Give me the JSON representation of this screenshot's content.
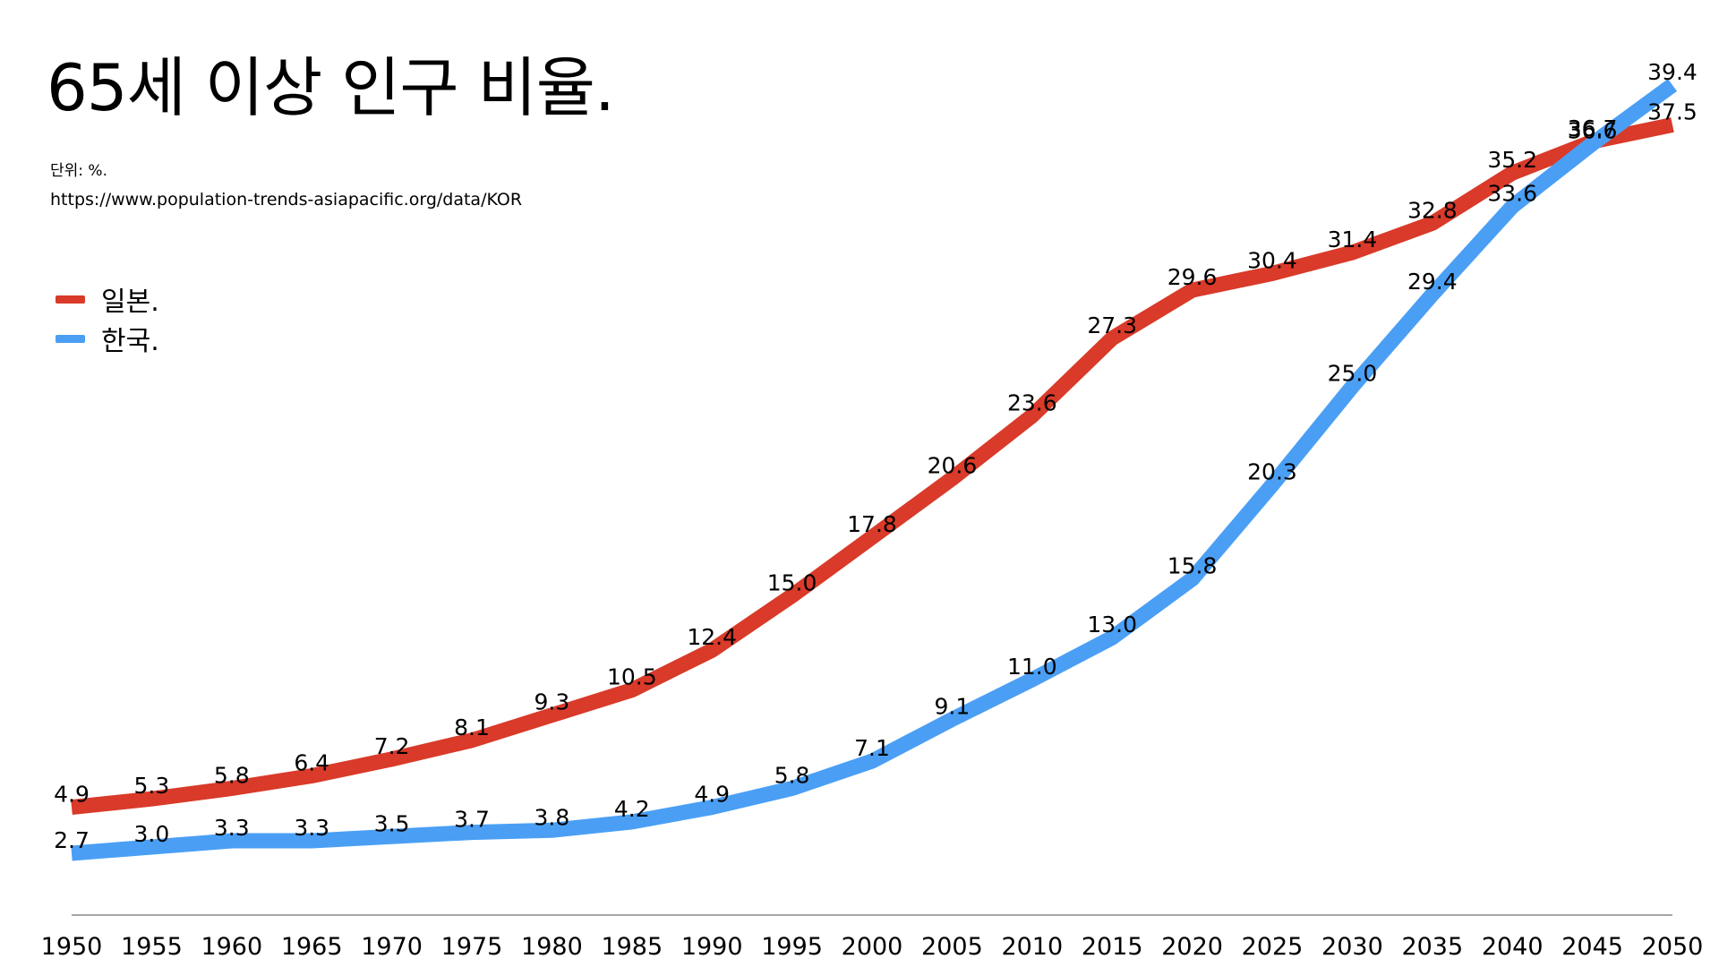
{
  "chart_data": {
    "type": "line",
    "title": "65세 이상 인구 비율.",
    "unit_note": "단위: %.",
    "source": "https://www.population-trends-asiapacific.org/data/KOR",
    "categories": [
      "1950",
      "1955",
      "1960",
      "1965",
      "1970",
      "1975",
      "1980",
      "1985",
      "1990",
      "1995",
      "2000",
      "2005",
      "2010",
      "2015",
      "2020",
      "2025",
      "2030",
      "2035",
      "2040",
      "2045",
      "2050"
    ],
    "ylim": [
      0,
      40
    ],
    "grid": false,
    "legend_position": "left",
    "series": [
      {
        "name": "일본.",
        "color": "#d93a29",
        "values": [
          4.9,
          5.3,
          5.8,
          6.4,
          7.2,
          8.1,
          9.3,
          10.5,
          12.4,
          15.0,
          17.8,
          20.6,
          23.6,
          27.3,
          29.6,
          30.4,
          31.4,
          32.8,
          35.2,
          36.7,
          37.5
        ]
      },
      {
        "name": "한국.",
        "color": "#4a9ff5",
        "values": [
          2.7,
          3.0,
          3.3,
          3.3,
          3.5,
          3.7,
          3.8,
          4.2,
          4.9,
          5.8,
          7.1,
          9.1,
          11.0,
          13.0,
          15.8,
          20.3,
          25.0,
          29.4,
          33.6,
          36.6,
          39.4
        ]
      }
    ]
  }
}
